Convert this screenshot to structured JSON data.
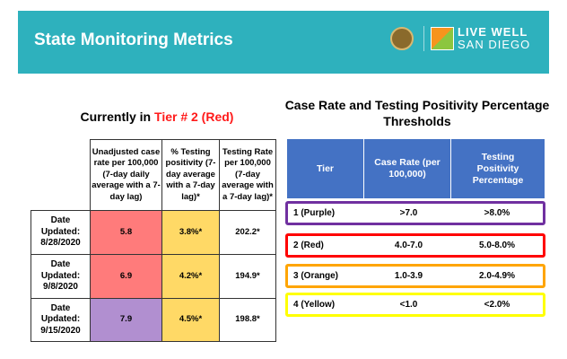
{
  "header": {
    "title": "State Monitoring Metrics",
    "logo_text_1": "LIVE WELL",
    "logo_text_2": "SAN DIEGO"
  },
  "current": {
    "prefix": "Currently in ",
    "tier": "Tier # 2 (Red)"
  },
  "left_table": {
    "headers": [
      "Unadjusted case rate per 100,000 (7-day daily average with a 7-day lag)",
      "% Testing positivity (7-day average with a 7-day lag)*",
      "Testing Rate per 100,000 (7-day average with a 7-day lag)*"
    ],
    "rows": [
      {
        "date": "Date Updated: 8/28/2020",
        "case_rate": "5.8",
        "positivity": "3.8%*",
        "testing_rate": "202.2*",
        "case_color": "#ff7b7b"
      },
      {
        "date": "Date Updated: 9/8/2020",
        "case_rate": "6.9",
        "positivity": "4.2%*",
        "testing_rate": "194.9*",
        "case_color": "#ff7b7b"
      },
      {
        "date": "Date Updated: 9/15/2020",
        "case_rate": "7.9",
        "positivity": "4.5%*",
        "testing_rate": "198.8*",
        "case_color": "#b18fd0"
      }
    ],
    "positivity_color": "#ffd966"
  },
  "thresholds": {
    "title": "Case Rate and Testing Positivity Percentage Thresholds",
    "headers": [
      "Tier",
      "Case Rate (per 100,000)",
      "Testing Positivity Percentage"
    ],
    "rows": [
      {
        "tier": "1 (Purple)",
        "case_rate": ">7.0",
        "positivity": ">8.0%",
        "color": "#7030a0"
      },
      {
        "tier": "2 (Red)",
        "case_rate": "4.0-7.0",
        "positivity": "5.0-8.0%",
        "color": "#ff0000"
      },
      {
        "tier": "3 (Orange)",
        "case_rate": "1.0-3.9",
        "positivity": "2.0-4.9%",
        "color": "#ffa500"
      },
      {
        "tier": "4 (Yellow)",
        "case_rate": "<1.0",
        "positivity": "<2.0%",
        "color": "#ffff00"
      }
    ]
  }
}
